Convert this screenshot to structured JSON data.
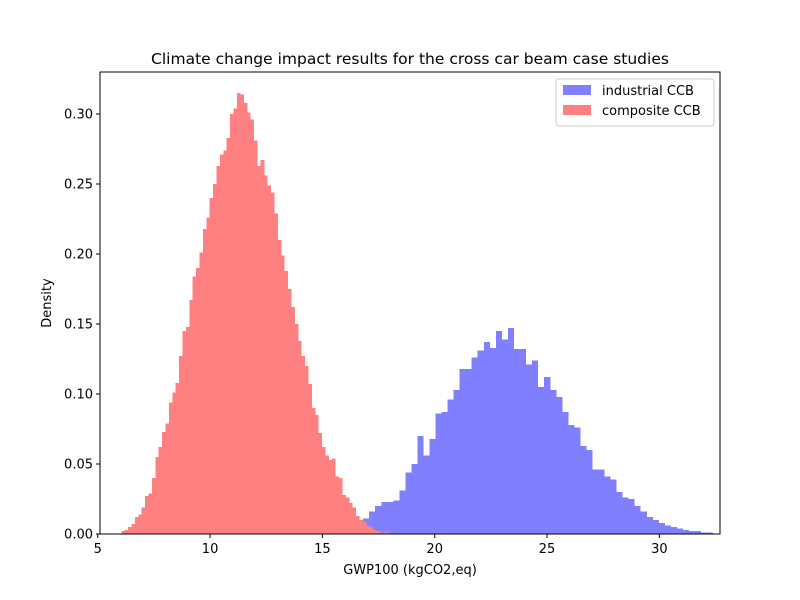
{
  "chart_data": {
    "type": "bar",
    "title": "Climate change impact results for the cross car beam case studies",
    "xlabel": "GWP100 (kgCO2,eq)",
    "ylabel": "Density",
    "xlim": [
      5.1,
      32.7
    ],
    "ylim": [
      0,
      0.33
    ],
    "xticks": [
      5,
      10,
      15,
      20,
      25,
      30
    ],
    "xtick_labels": [
      "5",
      "10",
      "15",
      "20",
      "25",
      "30"
    ],
    "yticks": [
      0,
      0.05,
      0.1,
      0.15,
      0.2,
      0.25,
      0.3
    ],
    "ytick_labels": [
      "0.00",
      "0.05",
      "0.10",
      "0.15",
      "0.20",
      "0.25",
      "0.30"
    ],
    "grid": false,
    "legend_position": "top-right",
    "series": [
      {
        "name": "industrial CCB",
        "color": "#8080ff",
        "bin_start": 14.4,
        "bin_width": 0.2684,
        "densities": [
          0.001,
          0.002,
          0.003,
          0.004,
          0.005,
          0.005,
          0.007,
          0.008,
          0.009,
          0.011,
          0.016,
          0.02,
          0.023,
          0.023,
          0.024,
          0.031,
          0.044,
          0.05,
          0.07,
          0.056,
          0.068,
          0.086,
          0.087,
          0.096,
          0.103,
          0.118,
          0.118,
          0.126,
          0.131,
          0.137,
          0.133,
          0.145,
          0.139,
          0.147,
          0.132,
          0.132,
          0.121,
          0.124,
          0.105,
          0.112,
          0.103,
          0.098,
          0.087,
          0.078,
          0.076,
          0.063,
          0.06,
          0.046,
          0.046,
          0.041,
          0.039,
          0.03,
          0.026,
          0.025,
          0.02,
          0.016,
          0.012,
          0.01,
          0.008,
          0.006,
          0.005,
          0.004,
          0.003,
          0.002,
          0.002,
          0.001,
          0.001
        ]
      },
      {
        "name": "composite CCB",
        "color": "#ff8080",
        "bin_start": 6.05,
        "bin_width": 0.1513,
        "densities": [
          0.002,
          0.003,
          0.005,
          0.007,
          0.012,
          0.014,
          0.019,
          0.027,
          0.029,
          0.04,
          0.055,
          0.062,
          0.073,
          0.079,
          0.094,
          0.101,
          0.108,
          0.127,
          0.145,
          0.148,
          0.167,
          0.184,
          0.19,
          0.201,
          0.218,
          0.226,
          0.24,
          0.25,
          0.263,
          0.271,
          0.274,
          0.283,
          0.3,
          0.304,
          0.315,
          0.314,
          0.308,
          0.301,
          0.296,
          0.281,
          0.263,
          0.267,
          0.256,
          0.249,
          0.244,
          0.229,
          0.21,
          0.199,
          0.188,
          0.175,
          0.162,
          0.15,
          0.138,
          0.127,
          0.12,
          0.107,
          0.09,
          0.085,
          0.072,
          0.062,
          0.056,
          0.053,
          0.054,
          0.041,
          0.04,
          0.028,
          0.026,
          0.022,
          0.019,
          0.013,
          0.01,
          0.009,
          0.006,
          0.005,
          0.003,
          0.002,
          0.001,
          0.001,
          0.001
        ]
      }
    ]
  }
}
